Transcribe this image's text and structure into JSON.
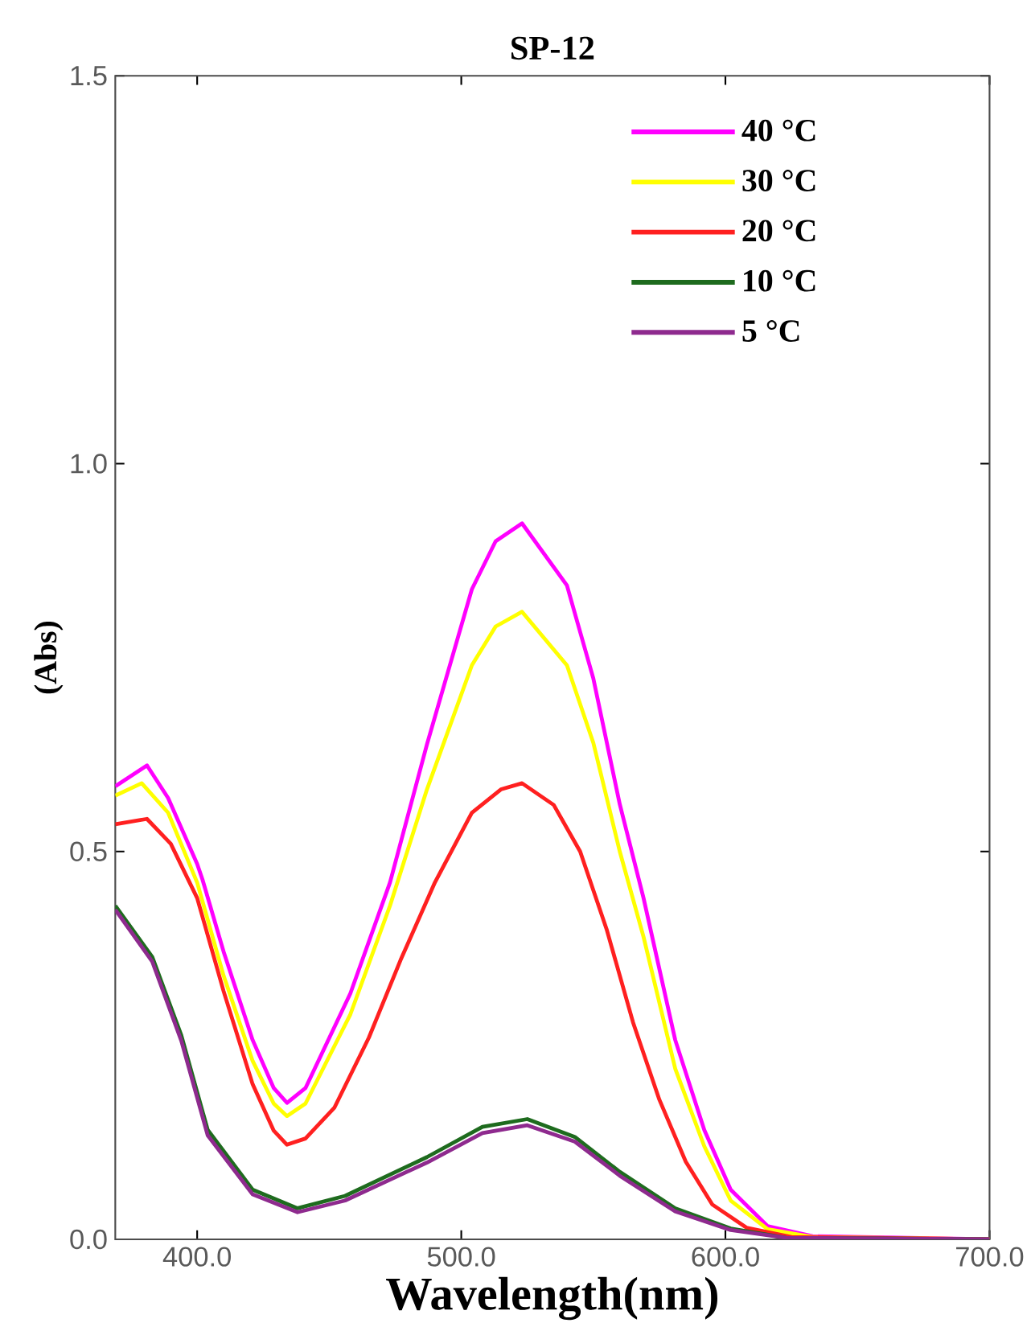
{
  "chart_data": {
    "type": "line",
    "title": "SP-12",
    "xlabel": "Wavelength(nm)",
    "ylabel": "(Abs)",
    "xlim": [
      369,
      700
    ],
    "ylim": [
      0,
      1.5
    ],
    "xticks": [
      {
        "value": 400,
        "label": "400.0"
      },
      {
        "value": 500,
        "label": "500.0"
      },
      {
        "value": 600,
        "label": "600.0"
      },
      {
        "value": 700,
        "label": "700.0"
      }
    ],
    "yticks": [
      {
        "value": 0,
        "label": "0.0"
      },
      {
        "value": 0.5,
        "label": "0.5"
      },
      {
        "value": 1.0,
        "label": "1.0"
      },
      {
        "value": 1.5,
        "label": "1.5"
      }
    ],
    "grid": false,
    "legend": "top right",
    "marker": "none",
    "line_style": "solid",
    "series": [
      {
        "name": "40 °C",
        "color": "#ff00ff",
        "x": [
          369,
          381,
          389,
          400,
          402,
          410,
          421,
          429,
          434,
          441,
          458,
          473,
          487,
          504,
          513,
          523,
          540,
          550,
          560,
          569,
          581,
          592,
          602,
          616,
          633,
          700
        ],
        "values": [
          0.584,
          0.611,
          0.569,
          0.484,
          0.464,
          0.371,
          0.257,
          0.195,
          0.176,
          0.195,
          0.317,
          0.46,
          0.638,
          0.838,
          0.9,
          0.923,
          0.843,
          0.723,
          0.561,
          0.44,
          0.257,
          0.141,
          0.064,
          0.017,
          0.004,
          0.0
        ]
      },
      {
        "name": "30 °C",
        "color": "#ffff00",
        "x": [
          369,
          379,
          389,
          400,
          410,
          421,
          429,
          434,
          441,
          458,
          473,
          487,
          504,
          513,
          523,
          540,
          550,
          560,
          569,
          581,
          592,
          602,
          616,
          633,
          700
        ],
        "values": [
          0.572,
          0.588,
          0.55,
          0.46,
          0.34,
          0.23,
          0.175,
          0.159,
          0.175,
          0.29,
          0.43,
          0.58,
          0.74,
          0.79,
          0.809,
          0.74,
          0.64,
          0.5,
          0.39,
          0.22,
          0.12,
          0.05,
          0.013,
          0.003,
          0
        ]
      },
      {
        "name": "20 °C",
        "color": "#ff2020",
        "x": [
          369,
          381,
          390,
          400,
          410,
          421,
          429,
          434,
          441,
          452,
          465,
          477,
          490,
          504,
          515,
          523,
          535,
          545,
          555,
          565,
          575,
          585,
          595,
          608,
          625,
          700
        ],
        "values": [
          0.535,
          0.542,
          0.51,
          0.44,
          0.32,
          0.2,
          0.14,
          0.122,
          0.13,
          0.17,
          0.26,
          0.36,
          0.46,
          0.55,
          0.58,
          0.588,
          0.56,
          0.5,
          0.4,
          0.28,
          0.18,
          0.1,
          0.045,
          0.015,
          0.003,
          0
        ]
      },
      {
        "name": "10 °C",
        "color": "#1e6b1e",
        "x": [
          369,
          383,
          394,
          404,
          421,
          438,
          456,
          487,
          508,
          525,
          543,
          560,
          581,
          602,
          623,
          700
        ],
        "values": [
          0.43,
          0.364,
          0.263,
          0.141,
          0.064,
          0.04,
          0.056,
          0.106,
          0.145,
          0.155,
          0.132,
          0.087,
          0.04,
          0.014,
          0.002,
          0
        ]
      },
      {
        "name": "5 °C",
        "color": "#8e2a8e",
        "x": [
          369,
          383,
          394,
          404,
          421,
          438,
          456,
          487,
          508,
          525,
          543,
          560,
          581,
          602,
          623,
          700
        ],
        "values": [
          0.425,
          0.358,
          0.256,
          0.134,
          0.058,
          0.035,
          0.05,
          0.099,
          0.137,
          0.147,
          0.126,
          0.082,
          0.036,
          0.012,
          0.002,
          0
        ]
      }
    ]
  }
}
